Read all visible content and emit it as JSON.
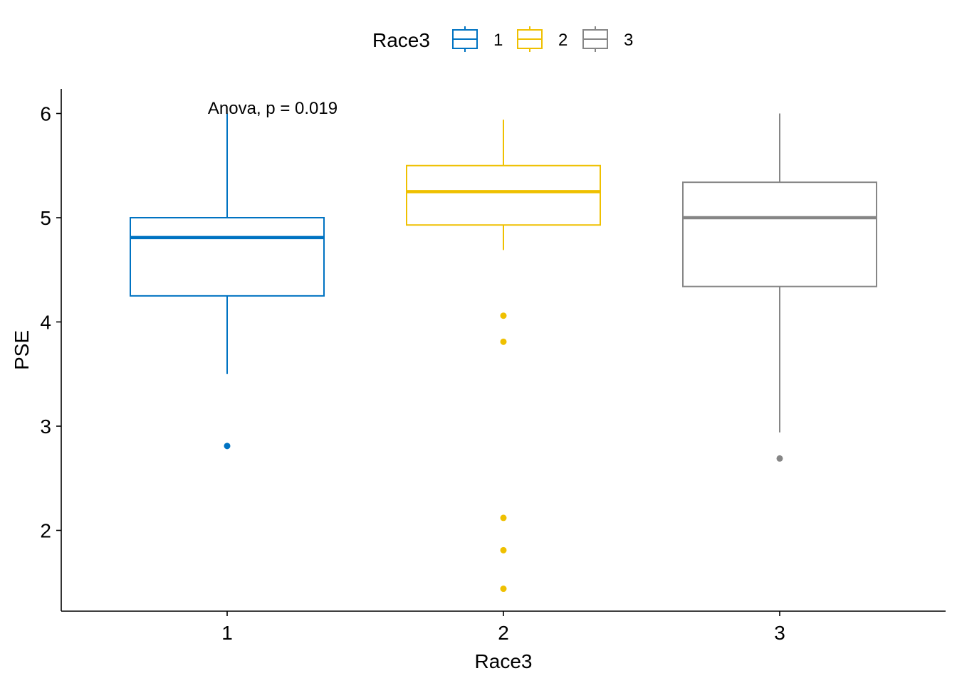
{
  "chart_data": {
    "type": "boxplot",
    "xlabel": "Race3",
    "ylabel": "PSE",
    "ylim": [
      1.25,
      6.23
    ],
    "yticks": [
      2,
      3,
      4,
      5,
      6
    ],
    "categories": [
      "1",
      "2",
      "3"
    ],
    "annotation": "Anova, p = 0.019",
    "legend": {
      "title": "Race3",
      "position": "top",
      "items": [
        "1",
        "2",
        "3"
      ]
    },
    "series": [
      {
        "category": "1",
        "color": "#0073C2",
        "whisker_low": 3.5,
        "q1": 4.25,
        "median": 4.81,
        "q3": 5.0,
        "whisker_high": 6.0,
        "outliers": [
          2.81
        ]
      },
      {
        "category": "2",
        "color": "#EFC000",
        "whisker_low": 4.69,
        "q1": 4.93,
        "median": 5.25,
        "q3": 5.5,
        "whisker_high": 5.94,
        "outliers": [
          4.06,
          3.81,
          2.12,
          1.81,
          1.44
        ]
      },
      {
        "category": "3",
        "color": "#868686",
        "whisker_low": 2.94,
        "q1": 4.34,
        "median": 5.0,
        "q3": 5.34,
        "whisker_high": 6.0,
        "outliers": [
          2.69
        ]
      }
    ]
  }
}
